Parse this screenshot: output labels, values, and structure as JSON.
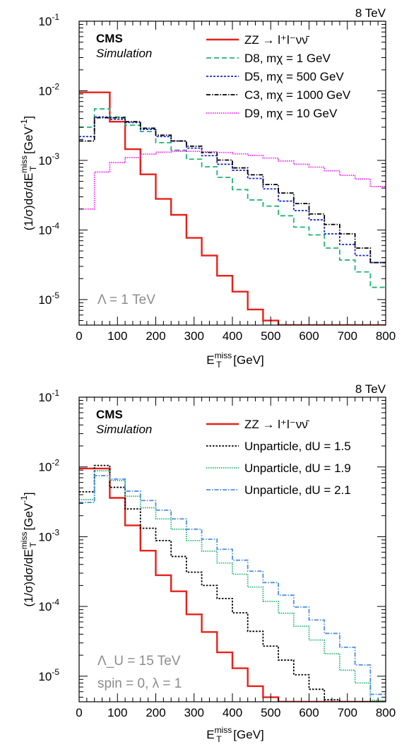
{
  "chart_data": [
    {
      "type": "line",
      "energy_label": "8 TeV",
      "experiment": "CMS",
      "status": "Simulation",
      "xlabel_main": "E",
      "xlabel_sub": "T",
      "xlabel_sup": "miss",
      "xlabel_unit": "[GeV]",
      "ylabel_prefix": "(1/σ)dσ/dE",
      "ylabel_sub": "T",
      "ylabel_sup": "miss",
      "ylabel_unit": "[GeV",
      "ylabel_unit_sup": "-1",
      "ylabel_close": "]",
      "xlim": [
        0,
        800
      ],
      "ylim": [
        4.3e-06,
        0.1
      ],
      "log_y": true,
      "x_ticks": [
        "0",
        "100",
        "200",
        "300",
        "400",
        "500",
        "600",
        "700",
        "800"
      ],
      "y_ticks": [
        {
          "base": "10",
          "exp": "-1"
        },
        {
          "base": "10",
          "exp": "-2"
        },
        {
          "base": "10",
          "exp": "-3"
        },
        {
          "base": "10",
          "exp": "-4"
        },
        {
          "base": "10",
          "exp": "-5"
        }
      ],
      "annotation": "Λ = 1 TeV",
      "bin_edges": [
        0,
        40,
        80,
        120,
        160,
        200,
        240,
        280,
        320,
        360,
        400,
        440,
        480,
        520,
        560,
        600,
        640,
        680,
        720,
        760,
        800
      ],
      "series": [
        {
          "name": "ZZ → l⁺l⁻νν̄",
          "color": "#e8201a",
          "dash": "",
          "values": [
            0.0095,
            0.0095,
            0.0036,
            0.00145,
            0.00063,
            0.00028,
            0.000165,
            7.7e-05,
            4.3e-05,
            2.2e-05,
            1.3e-05,
            7.2e-06,
            5e-06,
            3.9e-06,
            3.9e-06,
            3.9e-06,
            3.9e-06,
            3.9e-06,
            3.9e-06,
            3.9e-06
          ]
        },
        {
          "name": "D8, mχ = 1 GeV",
          "color": "#22b573",
          "dash": "7,4",
          "values": [
            0.003,
            0.0055,
            0.0042,
            0.0032,
            0.0026,
            0.0018,
            0.0014,
            0.00104,
            0.00081,
            0.00057,
            0.00038,
            0.00027,
            0.00022,
            0.00016,
            0.00011,
            8.5e-05,
            5.5e-05,
            3.7e-05,
            2.5e-05,
            1.5e-05
          ]
        },
        {
          "name": "D5, mχ = 500 GeV",
          "color": "#1a28c8",
          "dash": "3,2",
          "values": [
            0.0022,
            0.0042,
            0.0039,
            0.0035,
            0.0028,
            0.0022,
            0.0019,
            0.0015,
            0.00117,
            0.00088,
            0.00072,
            0.00055,
            0.00039,
            0.00026,
            0.00019,
            0.00014,
            8.8e-05,
            6.2e-05,
            4.3e-05,
            3.4e-05
          ]
        },
        {
          "name": "C3, mχ = 1000 GeV",
          "color": "#000000",
          "dash": "6,2,1.5,2",
          "values": [
            0.0019,
            0.0041,
            0.0041,
            0.0036,
            0.0029,
            0.0023,
            0.0019,
            0.0016,
            0.0013,
            0.00101,
            0.00078,
            0.00062,
            0.00045,
            0.00034,
            0.00024,
            0.00017,
            0.00012,
            8.8e-05,
            5.5e-05,
            3.4e-05
          ]
        },
        {
          "name": "D9, mχ = 10 GeV",
          "color": "#ee22ee",
          "dash": "1.5,1.5",
          "values": [
            0.0002,
            0.00068,
            0.00093,
            0.0011,
            0.00123,
            0.00131,
            0.00136,
            0.00135,
            0.00133,
            0.0013,
            0.00124,
            0.00118,
            0.00108,
            0.00098,
            0.00088,
            0.0008,
            0.00071,
            0.00061,
            0.00054,
            0.00042
          ]
        }
      ]
    },
    {
      "type": "line",
      "energy_label": "8 TeV",
      "experiment": "CMS",
      "status": "Simulation",
      "xlabel_main": "E",
      "xlabel_sub": "T",
      "xlabel_sup": "miss",
      "xlabel_unit": "[GeV]",
      "ylabel_prefix": "(1/σ)dσ/dE",
      "ylabel_sub": "T",
      "ylabel_sup": "miss",
      "ylabel_unit": "[GeV",
      "ylabel_unit_sup": "-1",
      "ylabel_close": "]",
      "xlim": [
        0,
        800
      ],
      "ylim": [
        4.3e-06,
        0.1
      ],
      "log_y": true,
      "x_ticks": [
        "0",
        "100",
        "200",
        "300",
        "400",
        "500",
        "600",
        "700",
        "800"
      ],
      "y_ticks": [
        {
          "base": "10",
          "exp": "-1"
        },
        {
          "base": "10",
          "exp": "-2"
        },
        {
          "base": "10",
          "exp": "-3"
        },
        {
          "base": "10",
          "exp": "-4"
        },
        {
          "base": "10",
          "exp": "-5"
        }
      ],
      "annotation": "Λ_U = 15 TeV",
      "annotation2": "spin = 0, λ = 1",
      "bin_edges": [
        0,
        40,
        80,
        120,
        160,
        200,
        240,
        280,
        320,
        360,
        400,
        440,
        480,
        520,
        560,
        600,
        640,
        680,
        720,
        760,
        800
      ],
      "series": [
        {
          "name": "ZZ → l⁺l⁻νν̄",
          "color": "#e8201a",
          "dash": "",
          "values": [
            0.0095,
            0.0095,
            0.0036,
            0.00145,
            0.00063,
            0.00028,
            0.000165,
            7.7e-05,
            4.3e-05,
            2.2e-05,
            1.3e-05,
            7.2e-06,
            5e-06,
            3.9e-06,
            3.9e-06,
            3.9e-06,
            3.9e-06,
            3.9e-06,
            3.9e-06,
            3.9e-06
          ]
        },
        {
          "name": "Unparticle, dU = 1.5",
          "color": "#000000",
          "dash": "2.5,2",
          "values": [
            0.0044,
            0.0105,
            0.0051,
            0.0025,
            0.00132,
            0.00088,
            0.00052,
            0.00031,
            0.0002,
            0.00013,
            8.1e-05,
            4.4e-05,
            2.7e-05,
            1.7e-05,
            1.05e-05,
            6.5e-06,
            4.6e-06,
            3.9e-06,
            3.9e-06,
            3.9e-06
          ]
        },
        {
          "name": "Unparticle, dU = 1.9",
          "color": "#22b573",
          "dash": "1.5,1.5",
          "values": [
            0.0034,
            0.0088,
            0.0064,
            0.0038,
            0.0026,
            0.0018,
            0.00128,
            0.00088,
            0.00062,
            0.00042,
            0.00029,
            0.00019,
            0.000118,
            8e-05,
            5.2e-05,
            3.3e-05,
            2.1e-05,
            1.22e-05,
            8e-06,
            4.5e-06
          ]
        },
        {
          "name": "Unparticle, dU = 2.1",
          "color": "#4c8ee8",
          "dash": "6,2,1.5,2",
          "values": [
            0.0031,
            0.0075,
            0.0067,
            0.0045,
            0.0033,
            0.0024,
            0.0018,
            0.00128,
            0.00092,
            0.00066,
            0.00046,
            0.00032,
            0.00022,
            0.000145,
            9.8e-05,
            6.4e-05,
            4.1e-05,
            2.6e-05,
            1.45e-05,
            5.5e-06
          ]
        }
      ]
    }
  ]
}
